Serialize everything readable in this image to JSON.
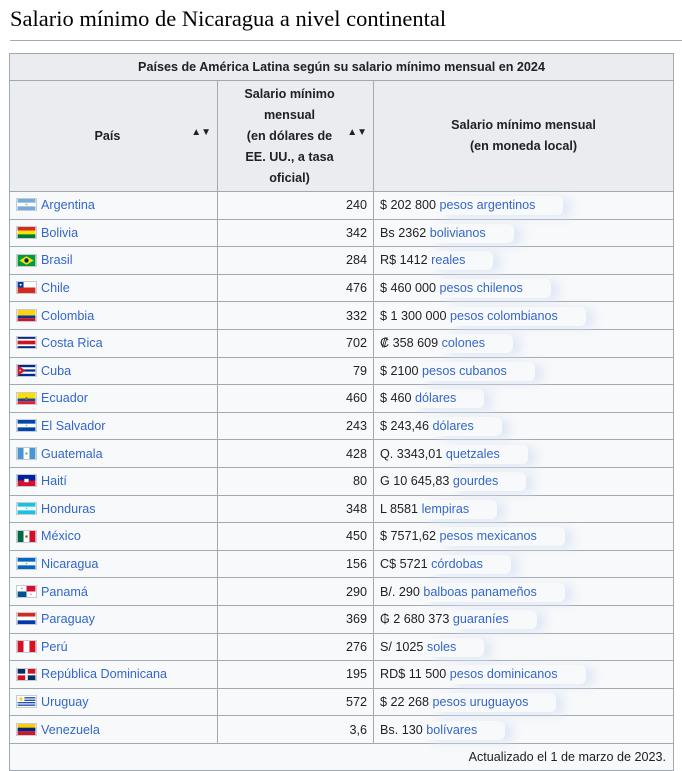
{
  "section_title": "Salario mínimo de Nicaragua a nivel continental",
  "table": {
    "caption": "Países de América Latina según su salario mínimo mensual en 2024",
    "headers": {
      "country": "País",
      "usd_lines": [
        "Salario mínimo",
        "mensual",
        "(en dólares de",
        "EE. UU., a tasa",
        "oficial)"
      ],
      "local_lines": [
        "Salario mínimo mensual",
        "(en moneda local)"
      ]
    },
    "rows": [
      {
        "country": "Argentina",
        "flag": "argentina-flag",
        "usd": "240",
        "amount": "$ 202 800",
        "currency": "pesos argentinos"
      },
      {
        "country": "Bolivia",
        "flag": "bolivia-flag",
        "usd": "342",
        "amount": "Bs 2362",
        "currency": "bolivianos"
      },
      {
        "country": "Brasil",
        "flag": "brasil-flag",
        "usd": "284",
        "amount": "R$ 1412",
        "currency": "reales"
      },
      {
        "country": "Chile",
        "flag": "chile-flag",
        "usd": "476",
        "amount": "$ 460 000",
        "currency": "pesos chilenos"
      },
      {
        "country": "Colombia",
        "flag": "colombia-flag",
        "usd": "332",
        "amount": "$ 1 300 000",
        "currency": "pesos colombianos"
      },
      {
        "country": "Costa Rica",
        "flag": "costa-rica-flag",
        "usd": "702",
        "amount": "₡ 358 609",
        "currency": "colones"
      },
      {
        "country": "Cuba",
        "flag": "cuba-flag",
        "usd": "79",
        "amount": "$ 2100",
        "currency": "pesos cubanos"
      },
      {
        "country": "Ecuador",
        "flag": "ecuador-flag",
        "usd": "460",
        "amount": "$ 460",
        "currency": "dólares"
      },
      {
        "country": "El Salvador",
        "flag": "el-salvador-flag",
        "usd": "243",
        "amount": "$ 243,46",
        "currency": "dólares"
      },
      {
        "country": "Guatemala",
        "flag": "guatemala-flag",
        "usd": "428",
        "amount": "Q. 3343,01",
        "currency": "quetzales"
      },
      {
        "country": "Haití",
        "flag": "haiti-flag",
        "usd": "80",
        "amount": "G 10 645,83",
        "currency": "gourdes"
      },
      {
        "country": "Honduras",
        "flag": "honduras-flag",
        "usd": "348",
        "amount": "L 8581",
        "currency": "lempiras"
      },
      {
        "country": "México",
        "flag": "mexico-flag",
        "usd": "450",
        "amount": "$ 7571,62",
        "currency": "pesos mexicanos"
      },
      {
        "country": "Nicaragua",
        "flag": "nicaragua-flag",
        "usd": "156",
        "amount": "C$ 5721",
        "currency": "córdobas"
      },
      {
        "country": "Panamá",
        "flag": "panama-flag",
        "usd": "290",
        "amount": "B/. 290",
        "currency": "balboas panameños"
      },
      {
        "country": "Paraguay",
        "flag": "paraguay-flag",
        "usd": "369",
        "amount": "₲ 2 680 373",
        "currency": "guaraníes"
      },
      {
        "country": "Perú",
        "flag": "peru-flag",
        "usd": "276",
        "amount": "S/ 1025",
        "currency": "soles"
      },
      {
        "country": "República Dominicana",
        "flag": "dominican-republic-flag",
        "usd": "195",
        "amount": "RD$ 11 500",
        "currency": "pesos dominicanos"
      },
      {
        "country": "Uruguay",
        "flag": "uruguay-flag",
        "usd": "572",
        "amount": "$ 22 268",
        "currency": "pesos uruguayos"
      },
      {
        "country": "Venezuela",
        "flag": "venezuela-flag",
        "usd": "3,6",
        "amount": "Bs. 130",
        "currency": "bolívares"
      }
    ],
    "footer": "Actualizado el 1 de marzo de 2023."
  }
}
